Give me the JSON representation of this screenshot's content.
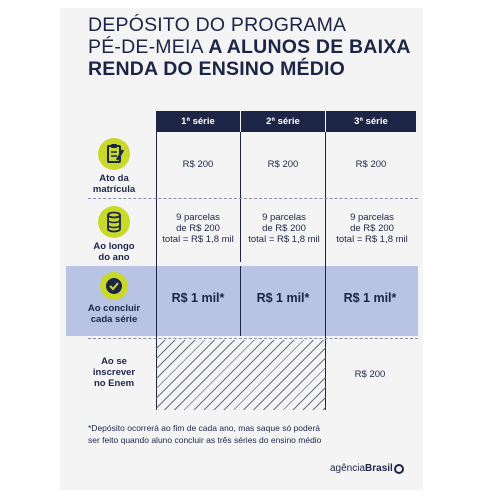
{
  "title": {
    "line1": "DEPÓSITO DO PROGRAMA",
    "line2_regular": "PÉ-DE-MEIA ",
    "line2_bold": "A ALUNOS DE BAIXA",
    "line3": "RENDA DO ENSINO MÉDIO"
  },
  "columns": [
    "1ª série",
    "2ª série",
    "3ª série"
  ],
  "rows": [
    {
      "label_line1": "Ato da",
      "label_line2": "matrícula",
      "icon": "clipboard-check-icon",
      "cells": [
        "R$ 200",
        "R$ 200",
        "R$ 200"
      ]
    },
    {
      "label_line1": "Ao longo",
      "label_line2": "do ano",
      "icon": "coins-stack-icon",
      "cells": [
        [
          "9 parcelas",
          "de R$ 200",
          "total = R$ 1,8 mil"
        ],
        [
          "9 parcelas",
          "de R$ 200",
          "total = R$ 1,8 mil"
        ],
        [
          "9 parcelas",
          "de R$ 200",
          "total = R$ 1,8 mil"
        ]
      ]
    },
    {
      "label_line1": "Ao concluir",
      "label_line2": "cada série",
      "icon": "check-circle-icon",
      "cells": [
        "R$ 1 mil*",
        "R$ 1 mil*",
        "R$ 1 mil*"
      ]
    },
    {
      "label_line1": "Ao se",
      "label_line2": "inscrever",
      "label_line3": "no Enem",
      "cells": [
        "",
        "",
        "R$ 200"
      ]
    }
  ],
  "note": {
    "line1": "*Depósito ocorrerá ao fim de cada ano, mas saque só poderá",
    "line2": "ser feito quando aluno concluir as três séries do ensino médio"
  },
  "logo": {
    "regular": "agência",
    "bold": "Brasil"
  },
  "colors": {
    "navy": "#1c2545",
    "lime": "#c8d92a",
    "highlight": "#b9c3e3",
    "background": "#f4f4f5"
  }
}
